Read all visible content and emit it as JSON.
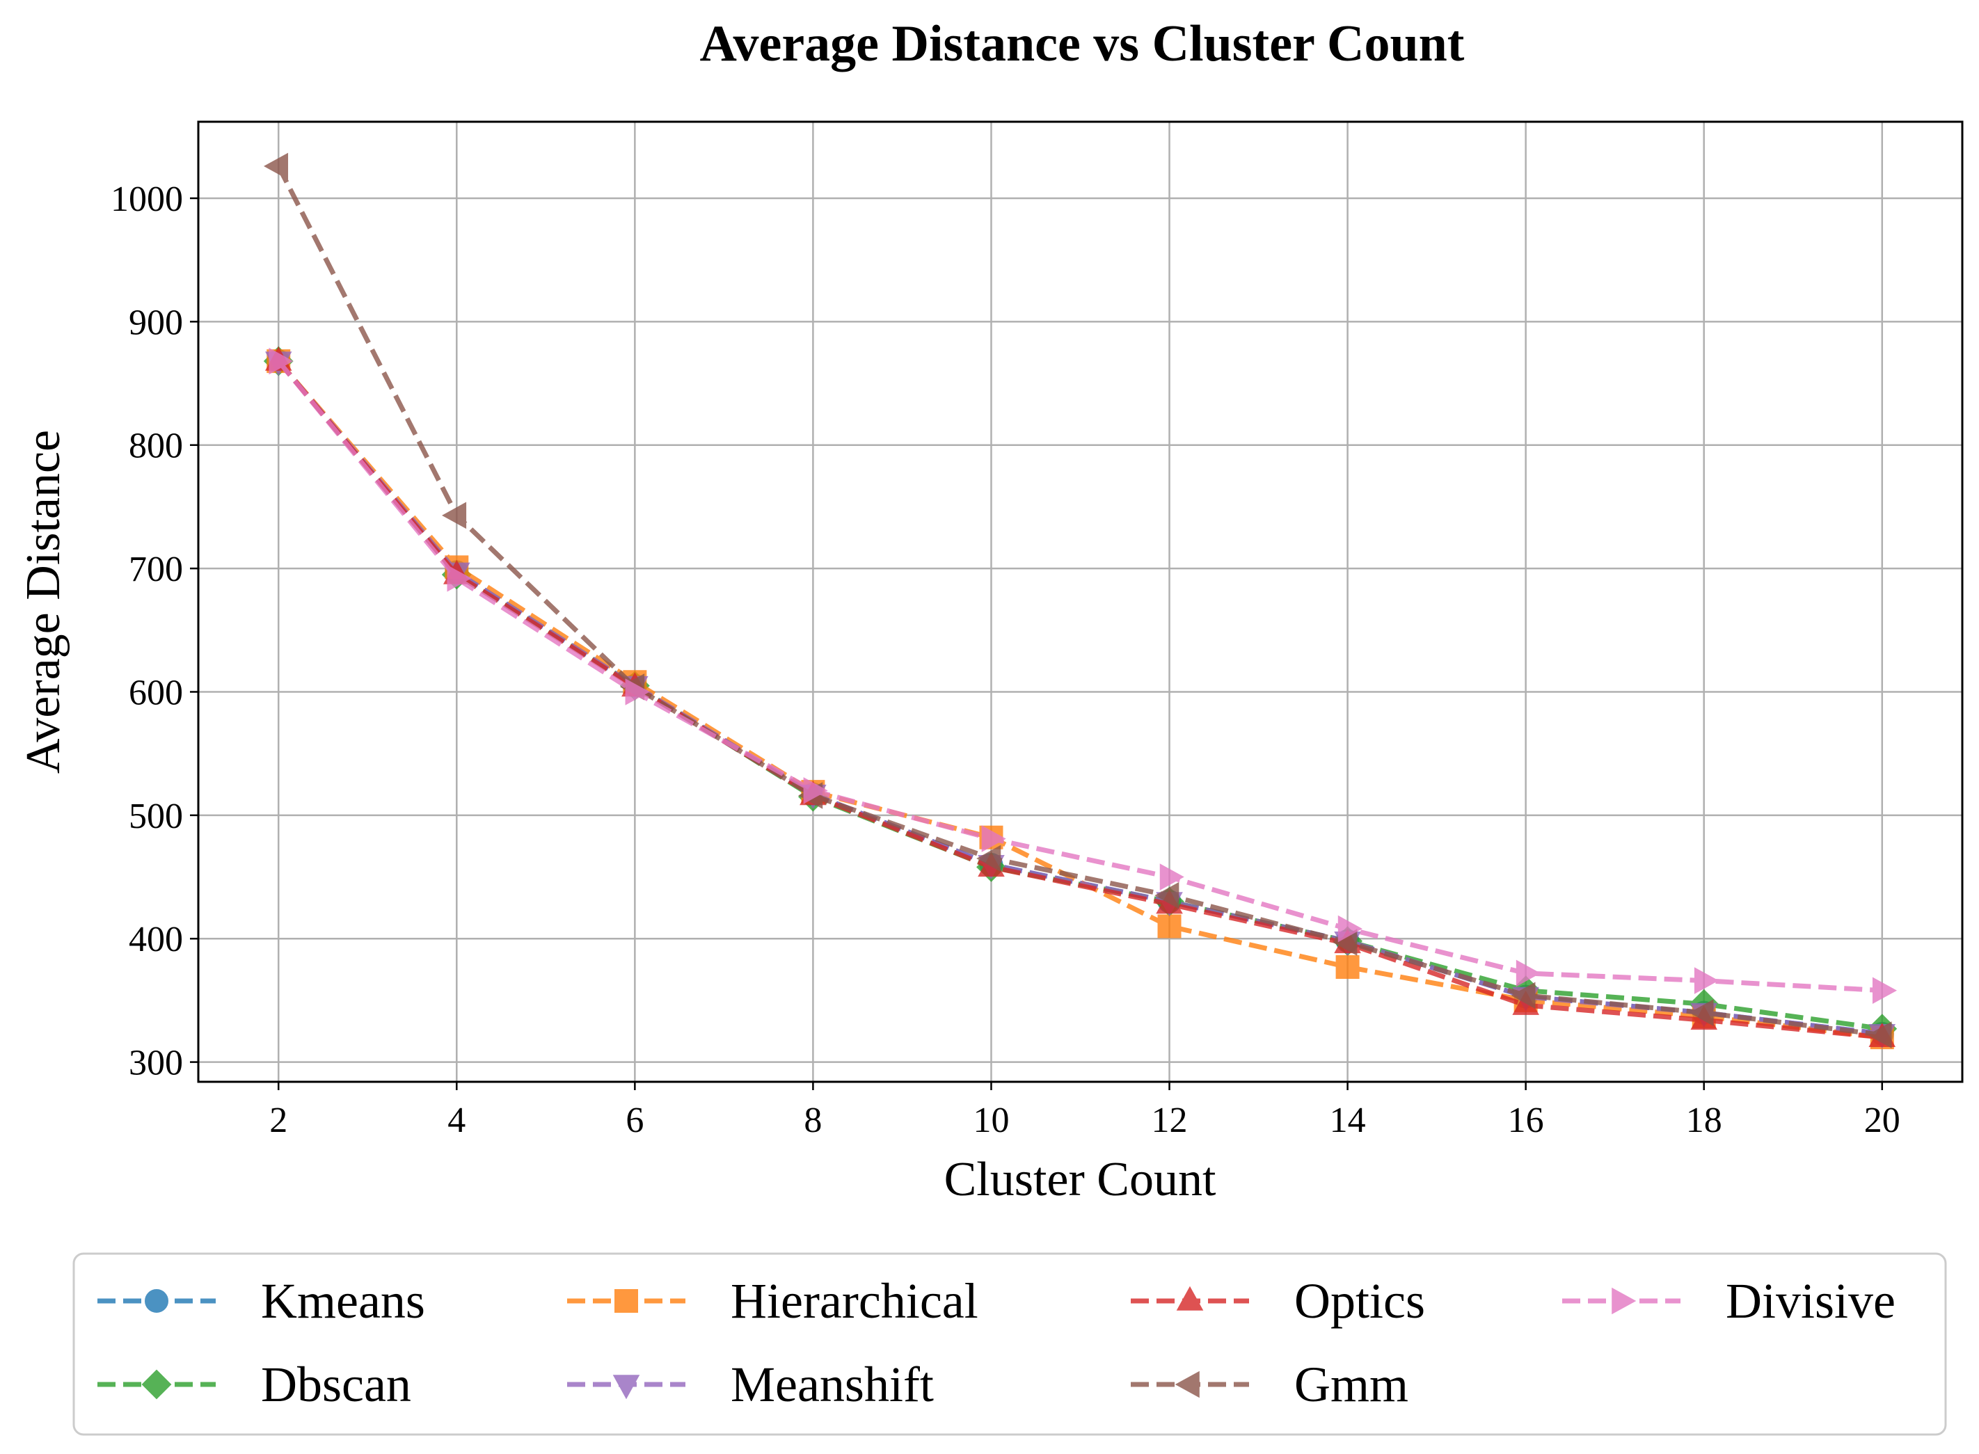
{
  "chart_data": {
    "type": "line",
    "title": "Average Distance vs Cluster Count",
    "xlabel": "Cluster Count",
    "ylabel": "Average Distance",
    "xlim": [
      1.1,
      20.9
    ],
    "ylim": [
      284,
      1062
    ],
    "xticks": [
      2,
      4,
      6,
      8,
      10,
      12,
      14,
      16,
      18,
      20
    ],
    "yticks": [
      300,
      400,
      500,
      600,
      700,
      800,
      900,
      1000
    ],
    "grid": true,
    "line_style": "dashed",
    "legend_placement": "below plot, 4 columns",
    "x": [
      2,
      4,
      6,
      8,
      10,
      12,
      14,
      16,
      18,
      20
    ],
    "series": [
      {
        "name": "Kmeans",
        "color": "#1f77b4",
        "marker": "circle",
        "values": [
          868,
          697,
          605,
          517,
          460,
          430,
          398,
          353,
          340,
          323
        ]
      },
      {
        "name": "Dbscan",
        "color": "#2ca02c",
        "marker": "diamond",
        "values": [
          868,
          695,
          605,
          515,
          458,
          430,
          398,
          358,
          347,
          327
        ]
      },
      {
        "name": "Hierarchical",
        "color": "#ff7f0e",
        "marker": "square",
        "values": [
          868,
          701,
          608,
          519,
          482,
          410,
          377,
          350,
          337,
          320
        ]
      },
      {
        "name": "Meanshift",
        "color": "#9467bd",
        "marker": "triangle-down",
        "values": [
          868,
          697,
          605,
          517,
          460,
          430,
          398,
          353,
          340,
          323
        ]
      },
      {
        "name": "Optics",
        "color": "#d62728",
        "marker": "triangle-up",
        "values": [
          868,
          695,
          604,
          516,
          458,
          428,
          396,
          346,
          334,
          320
        ]
      },
      {
        "name": "Gmm",
        "color": "#8c564b",
        "marker": "triangle-left",
        "values": [
          1026,
          743,
          604,
          516,
          465,
          435,
          397,
          354,
          340,
          322
        ]
      },
      {
        "name": "Divisive",
        "color": "#e377c2",
        "marker": "triangle-right",
        "values": [
          868,
          692,
          600,
          520,
          481,
          450,
          408,
          372,
          366,
          358
        ]
      }
    ],
    "legend_order": [
      "Kmeans",
      "Dbscan",
      "Hierarchical",
      "Meanshift",
      "Optics",
      "Gmm",
      "Divisive"
    ]
  }
}
